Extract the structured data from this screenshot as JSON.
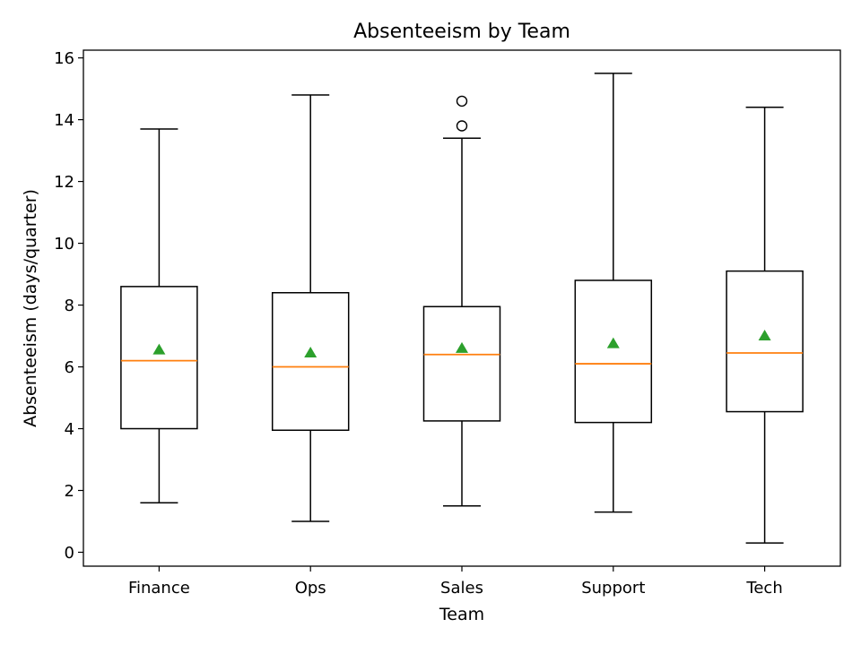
{
  "chart_data": {
    "type": "box",
    "title": "Absenteeism by Team",
    "xlabel": "Team",
    "ylabel": "Absenteeism (days/quarter)",
    "ylim": [
      -0.45,
      16.25
    ],
    "yticks": [
      0,
      2,
      4,
      6,
      8,
      10,
      12,
      14,
      16
    ],
    "categories": [
      "Finance",
      "Ops",
      "Sales",
      "Support",
      "Tech"
    ],
    "boxes": [
      {
        "whisker_low": 1.6,
        "q1": 4.0,
        "median": 6.2,
        "q3": 8.6,
        "whisker_high": 13.7,
        "mean": 6.55,
        "outliers": []
      },
      {
        "whisker_low": 1.0,
        "q1": 3.95,
        "median": 6.0,
        "q3": 8.4,
        "whisker_high": 14.8,
        "mean": 6.45,
        "outliers": []
      },
      {
        "whisker_low": 1.5,
        "q1": 4.25,
        "median": 6.4,
        "q3": 7.95,
        "whisker_high": 13.4,
        "mean": 6.6,
        "outliers": [
          13.8,
          14.6
        ]
      },
      {
        "whisker_low": 1.3,
        "q1": 4.2,
        "median": 6.1,
        "q3": 8.8,
        "whisker_high": 15.5,
        "mean": 6.75,
        "outliers": []
      },
      {
        "whisker_low": 0.3,
        "q1": 4.55,
        "median": 6.45,
        "q3": 9.1,
        "whisker_high": 14.4,
        "mean": 7.0,
        "outliers": []
      }
    ],
    "grid": false,
    "colors": {
      "box": "#000000",
      "median": "#ff7f0e",
      "mean": "#2ca02c",
      "outlier": "#000000"
    }
  }
}
